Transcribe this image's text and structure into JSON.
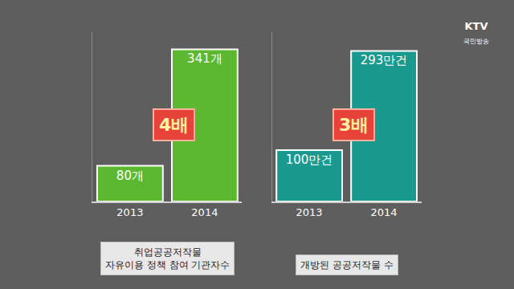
{
  "chart_data": [
    {
      "type": "bar",
      "categories": [
        "2013",
        "2014"
      ],
      "values": [
        80,
        341
      ],
      "value_labels": [
        "80개",
        "341개"
      ],
      "color": "#5cb82e",
      "ylim": [
        0,
        380
      ],
      "data_labels": true,
      "tick_labels": "x",
      "xlabel": [
        "취업공공저작물",
        "자유이용 정책 참여 기관자수"
      ],
      "annotations": [
        {
          "text": "4배",
          "category": "2014"
        }
      ]
    },
    {
      "type": "bar",
      "categories": [
        "2013",
        "2014"
      ],
      "values": [
        100,
        293
      ],
      "value_labels": [
        "100만건",
        "293만건"
      ],
      "color": "#1a9a8e",
      "ylim": [
        0,
        330
      ],
      "data_labels": true,
      "tick_labels": "x",
      "xlabel": [
        "개방된 공공저작물 수"
      ],
      "annotations": [
        {
          "text": "3배",
          "category": "2014"
        }
      ]
    }
  ],
  "logo": {
    "text": "KTV",
    "subtext": "국민방송"
  }
}
